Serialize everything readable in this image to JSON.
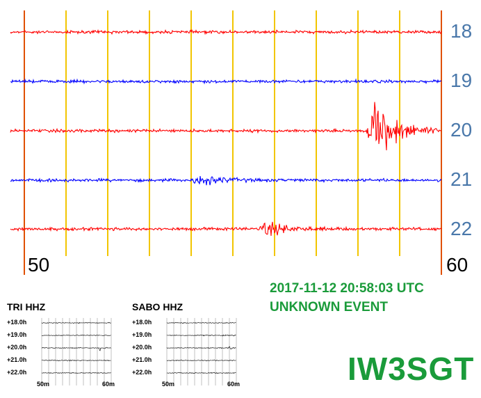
{
  "chart_data": {
    "type": "line",
    "title": "",
    "x_ticks": [
      "50",
      "60"
    ],
    "hours": [
      "18",
      "19",
      "20",
      "21",
      "22"
    ],
    "series": [
      {
        "row": "18",
        "color": "#ff0000",
        "amp": 3,
        "bursts": []
      },
      {
        "row": "19",
        "color": "#0000ff",
        "amp": 3,
        "bursts": []
      },
      {
        "row": "20",
        "color": "#ff0000",
        "amp": 3,
        "bursts": [
          {
            "t": 0.84,
            "amp": 60
          }
        ]
      },
      {
        "row": "21",
        "color": "#0000ff",
        "amp": 3,
        "bursts": [
          {
            "t": 0.42,
            "amp": 10
          }
        ]
      },
      {
        "row": "22",
        "color": "#ff0000",
        "amp": 3,
        "bursts": [
          {
            "t": 0.58,
            "amp": 14
          }
        ]
      }
    ],
    "grid": true,
    "grid_color": "#f2c500",
    "edge_color": "#e05000"
  },
  "timestamp": "2017-11-12 20:58:03 UTC",
  "event_label": "UNKNOWN EVENT",
  "station_id": "IW3SGT",
  "mini_charts": [
    {
      "title": "TRI HHZ",
      "rows": [
        "+18.0h",
        "+19.0h",
        "+20.0h",
        "+21.0h",
        "+22.0h"
      ],
      "x_ticks": [
        "50m",
        "60m"
      ],
      "event_row": 2,
      "event_t": 0.84
    },
    {
      "title": "SABO HHZ",
      "rows": [
        "+18.0h",
        "+19.0h",
        "+20.0h",
        "+21.0h",
        "+22.0h"
      ],
      "x_ticks": [
        "50m",
        "60m"
      ],
      "event_row": 2,
      "event_t": 0.9
    }
  ]
}
